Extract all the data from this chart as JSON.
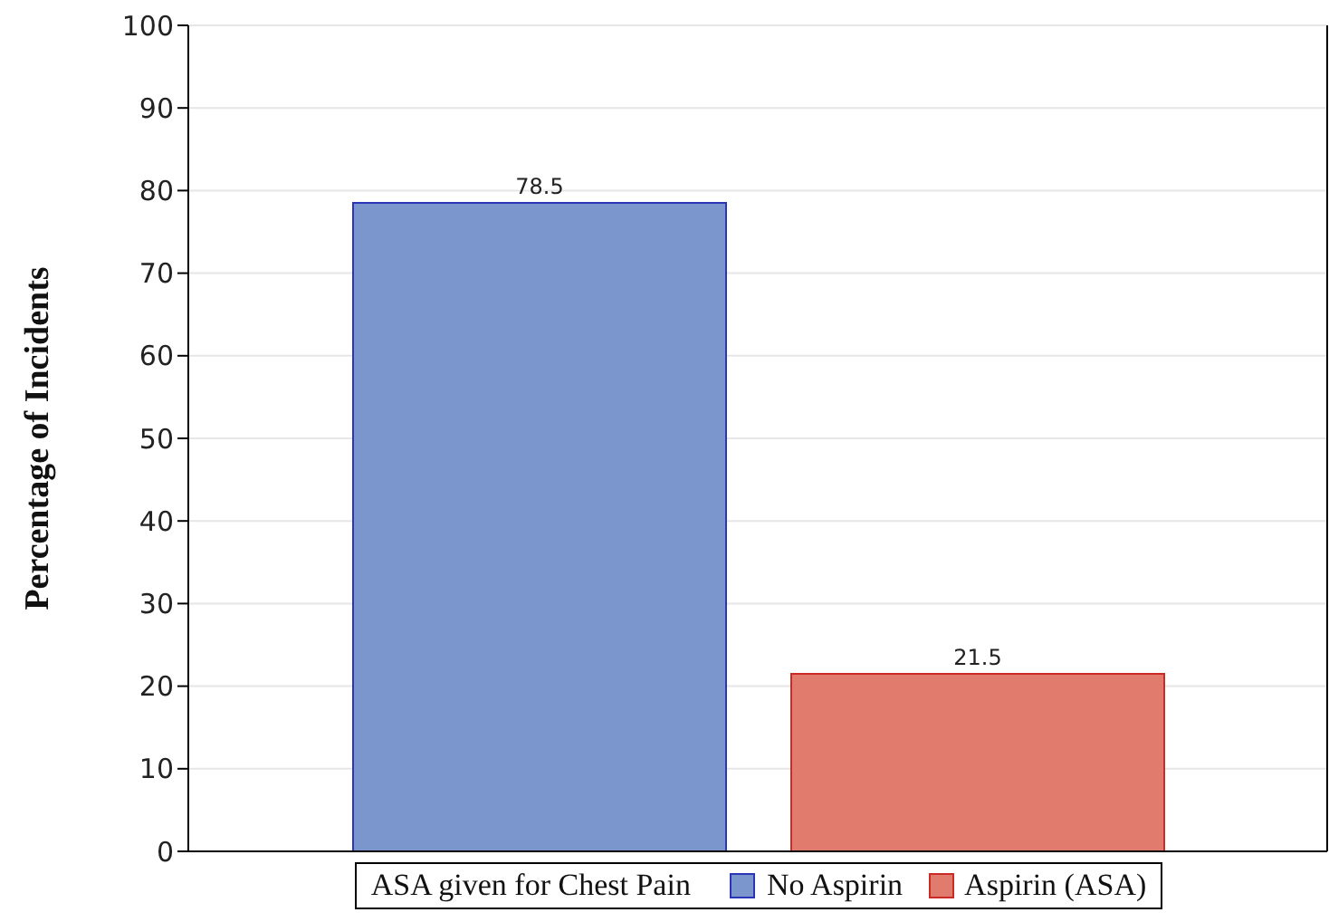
{
  "chart_data": {
    "type": "bar",
    "ylabel": "Percentage of Incidents",
    "legend_title": "ASA given for Chest Pain",
    "categories": [
      null
    ],
    "series": [
      {
        "name": "No Aspirin",
        "color": "#7b96cc",
        "values": [
          78.5
        ]
      },
      {
        "name": "Aspirin (ASA)",
        "color": "#e07b6e",
        "values": [
          21.5
        ]
      }
    ],
    "ylim": [
      0,
      100
    ],
    "yticks": [
      0,
      10,
      20,
      30,
      40,
      50,
      60,
      70,
      80,
      90,
      100
    ],
    "grid": "y",
    "data_labels": true,
    "legend": "bottom"
  }
}
